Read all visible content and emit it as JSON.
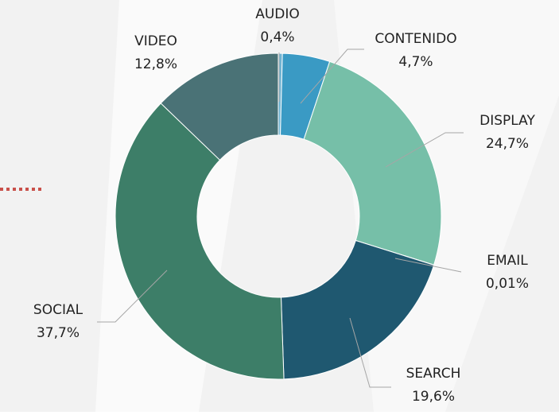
{
  "chart_data": {
    "type": "donut",
    "categories": [
      "AUDIO",
      "CONTENIDO",
      "DISPLAY",
      "EMAIL",
      "SEARCH",
      "SOCIAL",
      "VIDEO"
    ],
    "values": [
      0.4,
      4.7,
      24.7,
      0.01,
      19.6,
      37.7,
      12.8
    ],
    "value_labels": [
      "0,4%",
      "4,7%",
      "24,7%",
      "0,01%",
      "19,6%",
      "37,7%",
      "12,8%"
    ],
    "colors": [
      "#6fb3d2",
      "#3a9ac4",
      "#76bfa8",
      "#2a6b80",
      "#1f5870",
      "#3d7e68",
      "#4a7276"
    ]
  }
}
